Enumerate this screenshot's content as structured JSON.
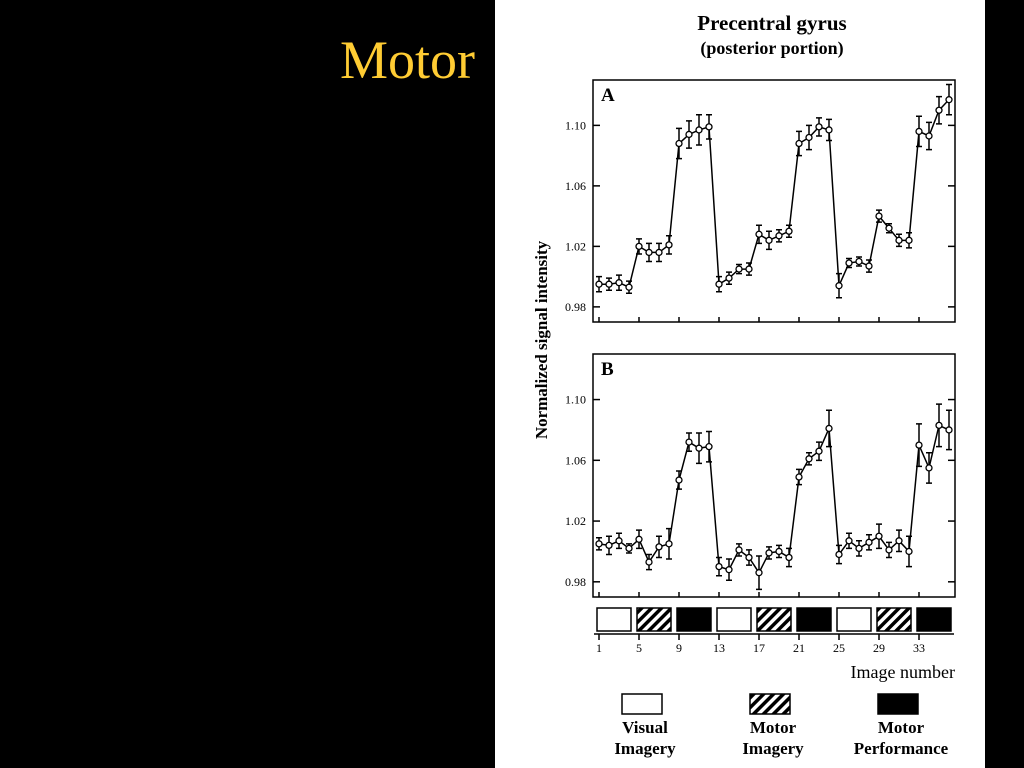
{
  "slide_title": "Motor",
  "figure": {
    "title": "Precentral  gyrus",
    "subtitle": "(posterior portion)",
    "y_label": "Normalized signal intensity",
    "x_label": "Image number",
    "blocks": [
      0,
      1,
      2,
      0,
      1,
      2,
      0,
      1,
      2
    ],
    "legend": [
      {
        "label_lines": [
          "Visual",
          "Imagery"
        ],
        "fill": "open"
      },
      {
        "label_lines": [
          "Motor",
          "Imagery"
        ],
        "fill": "hatch"
      },
      {
        "label_lines": [
          "Motor",
          "Performance"
        ],
        "fill": "solid"
      }
    ]
  },
  "chart_data": [
    {
      "type": "line",
      "title": "A",
      "x": [
        1,
        2,
        3,
        4,
        5,
        6,
        7,
        8,
        9,
        10,
        11,
        12,
        13,
        14,
        15,
        16,
        17,
        18,
        19,
        20,
        21,
        22,
        23,
        24,
        25,
        26,
        27,
        28,
        29,
        30,
        31,
        32,
        33,
        34,
        35,
        36
      ],
      "values": [
        0.995,
        0.995,
        0.996,
        0.993,
        1.02,
        1.016,
        1.016,
        1.021,
        1.088,
        1.094,
        1.097,
        1.099,
        0.995,
        0.999,
        1.005,
        1.005,
        1.028,
        1.024,
        1.027,
        1.03,
        1.088,
        1.092,
        1.099,
        1.097,
        0.994,
        1.009,
        1.01,
        1.007,
        1.04,
        1.032,
        1.024,
        1.024,
        1.096,
        1.093,
        1.11,
        1.117
      ],
      "errors": [
        0.005,
        0.004,
        0.005,
        0.004,
        0.005,
        0.006,
        0.006,
        0.006,
        0.01,
        0.009,
        0.01,
        0.008,
        0.005,
        0.004,
        0.003,
        0.004,
        0.006,
        0.006,
        0.004,
        0.004,
        0.008,
        0.008,
        0.006,
        0.007,
        0.008,
        0.003,
        0.003,
        0.004,
        0.004,
        0.003,
        0.004,
        0.005,
        0.01,
        0.009,
        0.009,
        0.01
      ],
      "xlim": [
        0.5,
        36.5
      ],
      "ylim": [
        0.97,
        1.13
      ],
      "xticks": [
        1,
        5,
        9,
        13,
        17,
        21,
        25,
        29,
        33
      ],
      "yticks": [
        0.98,
        1.02,
        1.06,
        {
          "value": 1.1,
          "label": "1.10"
        }
      ]
    },
    {
      "type": "line",
      "title": "B",
      "x": [
        1,
        2,
        3,
        4,
        5,
        6,
        7,
        8,
        9,
        10,
        11,
        12,
        13,
        14,
        15,
        16,
        17,
        18,
        19,
        20,
        21,
        22,
        23,
        24,
        25,
        26,
        27,
        28,
        29,
        30,
        31,
        32,
        33,
        34,
        35,
        36
      ],
      "values": [
        1.005,
        1.004,
        1.007,
        1.002,
        1.008,
        0.993,
        1.003,
        1.005,
        1.047,
        1.072,
        1.068,
        1.069,
        0.99,
        0.988,
        1.001,
        0.996,
        0.986,
        0.999,
        1.0,
        0.996,
        1.049,
        1.061,
        1.066,
        1.081,
        0.998,
        1.007,
        1.002,
        1.006,
        1.01,
        1.001,
        1.007,
        1.0,
        1.07,
        1.055,
        1.083,
        1.08
      ],
      "errors": [
        0.004,
        0.006,
        0.005,
        0.003,
        0.006,
        0.005,
        0.007,
        0.01,
        0.006,
        0.006,
        0.01,
        0.01,
        0.006,
        0.007,
        0.004,
        0.005,
        0.011,
        0.004,
        0.004,
        0.006,
        0.005,
        0.004,
        0.006,
        0.012,
        0.006,
        0.005,
        0.005,
        0.005,
        0.008,
        0.005,
        0.007,
        0.01,
        0.014,
        0.01,
        0.014,
        0.013
      ],
      "xlim": [
        0.5,
        36.5
      ],
      "ylim": [
        0.97,
        1.13
      ],
      "xticks": [
        1,
        5,
        9,
        13,
        17,
        21,
        25,
        29,
        33
      ],
      "yticks": [
        0.98,
        1.02,
        1.06,
        {
          "value": 1.1,
          "label": "1.10"
        }
      ]
    }
  ]
}
